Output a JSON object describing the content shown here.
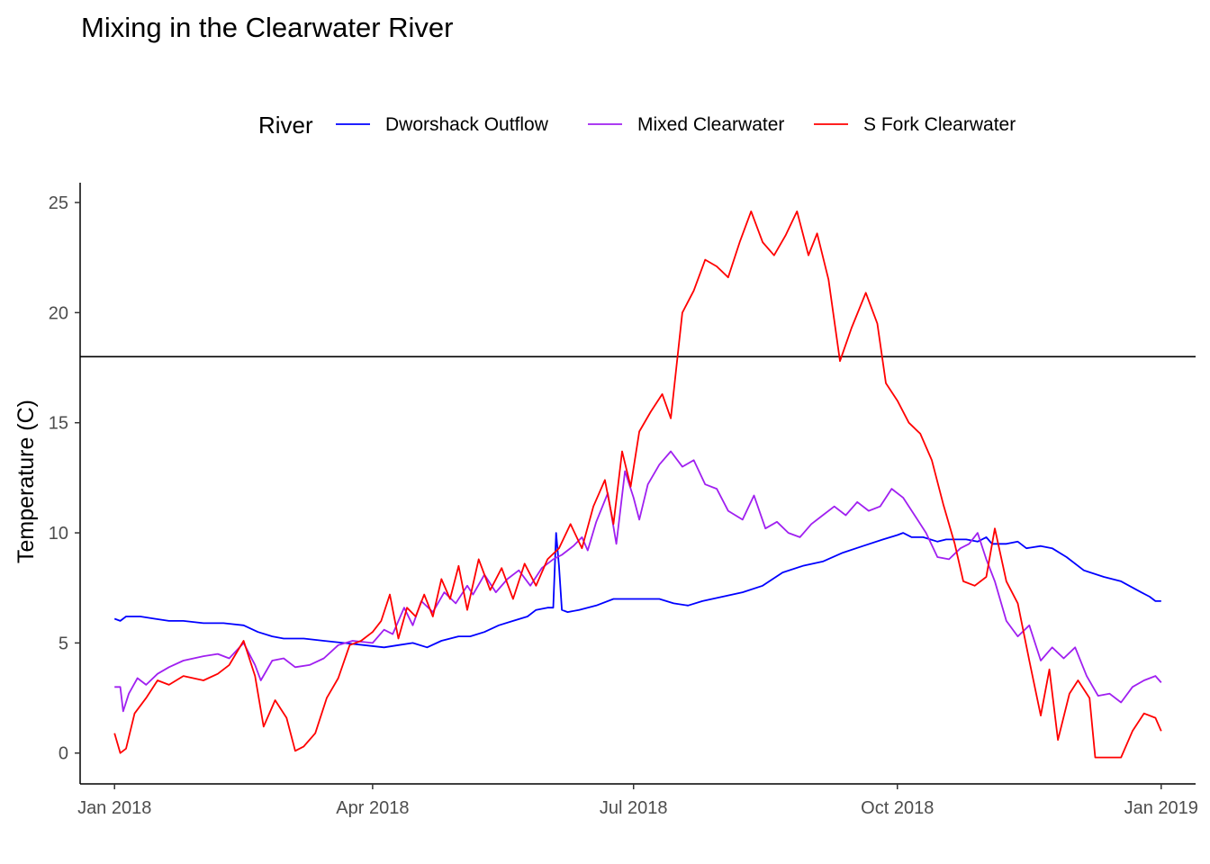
{
  "chart_data": {
    "type": "line",
    "title": "Mixing in the Clearwater River",
    "xlabel": "",
    "ylabel": "Temperature (C)",
    "legend": {
      "title": "River",
      "position": "top"
    },
    "x_ticks": [
      "2018-01-01",
      "2018-04-01",
      "2018-07-01",
      "2018-10-01",
      "2019-01-01"
    ],
    "x_tick_labels": [
      "Jan 2018",
      "Apr 2018",
      "Jul 2018",
      "Oct 2018",
      "Jan 2019"
    ],
    "xlim": [
      "2017-12-20",
      "2019-01-13"
    ],
    "y_ticks": [
      0,
      5,
      10,
      15,
      20,
      25
    ],
    "ylim": [
      -1.4,
      25.9
    ],
    "grid": false,
    "reference_line": {
      "y": 18
    },
    "series": [
      {
        "name": "Dworshack Outflow",
        "color": "#0000ff",
        "points": [
          [
            "2018-01-01",
            6.1
          ],
          [
            "2018-01-03",
            6.0
          ],
          [
            "2018-01-05",
            6.2
          ],
          [
            "2018-01-10",
            6.2
          ],
          [
            "2018-01-15",
            6.1
          ],
          [
            "2018-01-20",
            6.0
          ],
          [
            "2018-01-25",
            6.0
          ],
          [
            "2018-02-01",
            5.9
          ],
          [
            "2018-02-08",
            5.9
          ],
          [
            "2018-02-15",
            5.8
          ],
          [
            "2018-02-20",
            5.5
          ],
          [
            "2018-02-25",
            5.3
          ],
          [
            "2018-03-01",
            5.2
          ],
          [
            "2018-03-08",
            5.2
          ],
          [
            "2018-03-15",
            5.1
          ],
          [
            "2018-03-22",
            5.0
          ],
          [
            "2018-03-29",
            4.9
          ],
          [
            "2018-04-05",
            4.8
          ],
          [
            "2018-04-10",
            4.9
          ],
          [
            "2018-04-15",
            5.0
          ],
          [
            "2018-04-20",
            4.8
          ],
          [
            "2018-04-25",
            5.1
          ],
          [
            "2018-05-01",
            5.3
          ],
          [
            "2018-05-05",
            5.3
          ],
          [
            "2018-05-10",
            5.5
          ],
          [
            "2018-05-15",
            5.8
          ],
          [
            "2018-05-20",
            6.0
          ],
          [
            "2018-05-25",
            6.2
          ],
          [
            "2018-05-28",
            6.5
          ],
          [
            "2018-06-01",
            6.6
          ],
          [
            "2018-06-03",
            6.6
          ],
          [
            "2018-06-04",
            10.0
          ],
          [
            "2018-06-05",
            8.5
          ],
          [
            "2018-06-06",
            6.5
          ],
          [
            "2018-06-08",
            6.4
          ],
          [
            "2018-06-12",
            6.5
          ],
          [
            "2018-06-18",
            6.7
          ],
          [
            "2018-06-24",
            7.0
          ],
          [
            "2018-07-01",
            7.0
          ],
          [
            "2018-07-05",
            7.0
          ],
          [
            "2018-07-10",
            7.0
          ],
          [
            "2018-07-15",
            6.8
          ],
          [
            "2018-07-20",
            6.7
          ],
          [
            "2018-07-25",
            6.9
          ],
          [
            "2018-08-01",
            7.1
          ],
          [
            "2018-08-08",
            7.3
          ],
          [
            "2018-08-15",
            7.6
          ],
          [
            "2018-08-22",
            8.2
          ],
          [
            "2018-08-29",
            8.5
          ],
          [
            "2018-09-05",
            8.7
          ],
          [
            "2018-09-12",
            9.1
          ],
          [
            "2018-09-19",
            9.4
          ],
          [
            "2018-09-26",
            9.7
          ],
          [
            "2018-10-01",
            9.9
          ],
          [
            "2018-10-03",
            10.0
          ],
          [
            "2018-10-06",
            9.8
          ],
          [
            "2018-10-10",
            9.8
          ],
          [
            "2018-10-15",
            9.6
          ],
          [
            "2018-10-18",
            9.7
          ],
          [
            "2018-10-25",
            9.7
          ],
          [
            "2018-10-29",
            9.6
          ],
          [
            "2018-11-01",
            9.8
          ],
          [
            "2018-11-03",
            9.5
          ],
          [
            "2018-11-08",
            9.5
          ],
          [
            "2018-11-12",
            9.6
          ],
          [
            "2018-11-15",
            9.3
          ],
          [
            "2018-11-20",
            9.4
          ],
          [
            "2018-11-24",
            9.3
          ],
          [
            "2018-11-29",
            8.9
          ],
          [
            "2018-12-05",
            8.3
          ],
          [
            "2018-12-12",
            8.0
          ],
          [
            "2018-12-18",
            7.8
          ],
          [
            "2018-12-25",
            7.3
          ],
          [
            "2018-12-28",
            7.1
          ],
          [
            "2018-12-30",
            6.9
          ],
          [
            "2019-01-01",
            6.9
          ]
        ]
      },
      {
        "name": "Mixed Clearwater",
        "color": "#a020f0",
        "points": [
          [
            "2018-01-01",
            3.0
          ],
          [
            "2018-01-03",
            3.0
          ],
          [
            "2018-01-04",
            1.9
          ],
          [
            "2018-01-06",
            2.7
          ],
          [
            "2018-01-09",
            3.4
          ],
          [
            "2018-01-12",
            3.1
          ],
          [
            "2018-01-16",
            3.6
          ],
          [
            "2018-01-20",
            3.9
          ],
          [
            "2018-01-25",
            4.2
          ],
          [
            "2018-02-01",
            4.4
          ],
          [
            "2018-02-06",
            4.5
          ],
          [
            "2018-02-10",
            4.3
          ],
          [
            "2018-02-15",
            5.0
          ],
          [
            "2018-02-19",
            4.0
          ],
          [
            "2018-02-21",
            3.3
          ],
          [
            "2018-02-25",
            4.2
          ],
          [
            "2018-03-01",
            4.3
          ],
          [
            "2018-03-05",
            3.9
          ],
          [
            "2018-03-10",
            4.0
          ],
          [
            "2018-03-15",
            4.3
          ],
          [
            "2018-03-20",
            4.9
          ],
          [
            "2018-03-25",
            5.1
          ],
          [
            "2018-04-01",
            5.0
          ],
          [
            "2018-04-05",
            5.6
          ],
          [
            "2018-04-08",
            5.4
          ],
          [
            "2018-04-12",
            6.6
          ],
          [
            "2018-04-15",
            5.8
          ],
          [
            "2018-04-18",
            6.9
          ],
          [
            "2018-04-22",
            6.4
          ],
          [
            "2018-04-26",
            7.3
          ],
          [
            "2018-04-30",
            6.8
          ],
          [
            "2018-05-04",
            7.6
          ],
          [
            "2018-05-06",
            7.2
          ],
          [
            "2018-05-10",
            8.1
          ],
          [
            "2018-05-14",
            7.3
          ],
          [
            "2018-05-18",
            7.9
          ],
          [
            "2018-05-22",
            8.3
          ],
          [
            "2018-05-26",
            7.6
          ],
          [
            "2018-05-30",
            8.4
          ],
          [
            "2018-06-03",
            8.8
          ],
          [
            "2018-06-06",
            9.0
          ],
          [
            "2018-06-10",
            9.4
          ],
          [
            "2018-06-13",
            9.8
          ],
          [
            "2018-06-15",
            9.2
          ],
          [
            "2018-06-18",
            10.5
          ],
          [
            "2018-06-22",
            11.8
          ],
          [
            "2018-06-25",
            9.5
          ],
          [
            "2018-06-28",
            12.8
          ],
          [
            "2018-07-01",
            11.6
          ],
          [
            "2018-07-03",
            10.6
          ],
          [
            "2018-07-06",
            12.2
          ],
          [
            "2018-07-10",
            13.1
          ],
          [
            "2018-07-14",
            13.7
          ],
          [
            "2018-07-18",
            13.0
          ],
          [
            "2018-07-22",
            13.3
          ],
          [
            "2018-07-26",
            12.2
          ],
          [
            "2018-07-30",
            12.0
          ],
          [
            "2018-08-03",
            11.0
          ],
          [
            "2018-08-08",
            10.6
          ],
          [
            "2018-08-12",
            11.7
          ],
          [
            "2018-08-16",
            10.2
          ],
          [
            "2018-08-20",
            10.5
          ],
          [
            "2018-08-24",
            10.0
          ],
          [
            "2018-08-28",
            9.8
          ],
          [
            "2018-09-01",
            10.4
          ],
          [
            "2018-09-05",
            10.8
          ],
          [
            "2018-09-09",
            11.2
          ],
          [
            "2018-09-13",
            10.8
          ],
          [
            "2018-09-17",
            11.4
          ],
          [
            "2018-09-21",
            11.0
          ],
          [
            "2018-09-25",
            11.2
          ],
          [
            "2018-09-29",
            12.0
          ],
          [
            "2018-10-03",
            11.6
          ],
          [
            "2018-10-07",
            10.8
          ],
          [
            "2018-10-11",
            10.0
          ],
          [
            "2018-10-15",
            8.9
          ],
          [
            "2018-10-19",
            8.8
          ],
          [
            "2018-10-23",
            9.3
          ],
          [
            "2018-10-26",
            9.5
          ],
          [
            "2018-10-29",
            10.0
          ],
          [
            "2018-11-01",
            8.8
          ],
          [
            "2018-11-04",
            7.8
          ],
          [
            "2018-11-08",
            6.0
          ],
          [
            "2018-11-12",
            5.3
          ],
          [
            "2018-11-16",
            5.8
          ],
          [
            "2018-11-20",
            4.2
          ],
          [
            "2018-11-24",
            4.8
          ],
          [
            "2018-11-28",
            4.3
          ],
          [
            "2018-12-02",
            4.8
          ],
          [
            "2018-12-06",
            3.5
          ],
          [
            "2018-12-10",
            2.6
          ],
          [
            "2018-12-14",
            2.7
          ],
          [
            "2018-12-18",
            2.3
          ],
          [
            "2018-12-22",
            3.0
          ],
          [
            "2018-12-26",
            3.3
          ],
          [
            "2018-12-30",
            3.5
          ],
          [
            "2019-01-01",
            3.2
          ]
        ]
      },
      {
        "name": "S Fork Clearwater",
        "color": "#ff0000",
        "points": [
          [
            "2018-01-01",
            0.9
          ],
          [
            "2018-01-03",
            0.0
          ],
          [
            "2018-01-05",
            0.2
          ],
          [
            "2018-01-08",
            1.8
          ],
          [
            "2018-01-12",
            2.5
          ],
          [
            "2018-01-16",
            3.3
          ],
          [
            "2018-01-20",
            3.1
          ],
          [
            "2018-01-25",
            3.5
          ],
          [
            "2018-02-01",
            3.3
          ],
          [
            "2018-02-06",
            3.6
          ],
          [
            "2018-02-10",
            4.0
          ],
          [
            "2018-02-15",
            5.1
          ],
          [
            "2018-02-19",
            3.5
          ],
          [
            "2018-02-22",
            1.2
          ],
          [
            "2018-02-26",
            2.4
          ],
          [
            "2018-03-02",
            1.6
          ],
          [
            "2018-03-05",
            0.1
          ],
          [
            "2018-03-08",
            0.3
          ],
          [
            "2018-03-12",
            0.9
          ],
          [
            "2018-03-16",
            2.5
          ],
          [
            "2018-03-20",
            3.4
          ],
          [
            "2018-03-24",
            4.9
          ],
          [
            "2018-03-28",
            5.1
          ],
          [
            "2018-04-01",
            5.5
          ],
          [
            "2018-04-04",
            6.0
          ],
          [
            "2018-04-07",
            7.2
          ],
          [
            "2018-04-10",
            5.2
          ],
          [
            "2018-04-13",
            6.6
          ],
          [
            "2018-04-16",
            6.2
          ],
          [
            "2018-04-19",
            7.2
          ],
          [
            "2018-04-22",
            6.2
          ],
          [
            "2018-04-25",
            7.9
          ],
          [
            "2018-04-28",
            7.0
          ],
          [
            "2018-05-01",
            8.5
          ],
          [
            "2018-05-04",
            6.5
          ],
          [
            "2018-05-08",
            8.8
          ],
          [
            "2018-05-12",
            7.4
          ],
          [
            "2018-05-16",
            8.4
          ],
          [
            "2018-05-20",
            7.0
          ],
          [
            "2018-05-24",
            8.6
          ],
          [
            "2018-05-28",
            7.6
          ],
          [
            "2018-06-01",
            8.8
          ],
          [
            "2018-06-05",
            9.3
          ],
          [
            "2018-06-09",
            10.4
          ],
          [
            "2018-06-13",
            9.3
          ],
          [
            "2018-06-17",
            11.2
          ],
          [
            "2018-06-21",
            12.4
          ],
          [
            "2018-06-24",
            10.4
          ],
          [
            "2018-06-27",
            13.7
          ],
          [
            "2018-06-30",
            12.1
          ],
          [
            "2018-07-03",
            14.6
          ],
          [
            "2018-07-07",
            15.5
          ],
          [
            "2018-07-11",
            16.3
          ],
          [
            "2018-07-14",
            15.2
          ],
          [
            "2018-07-18",
            20.0
          ],
          [
            "2018-07-22",
            21.0
          ],
          [
            "2018-07-26",
            22.4
          ],
          [
            "2018-07-30",
            22.1
          ],
          [
            "2018-08-03",
            21.6
          ],
          [
            "2018-08-07",
            23.2
          ],
          [
            "2018-08-11",
            24.6
          ],
          [
            "2018-08-15",
            23.2
          ],
          [
            "2018-08-19",
            22.6
          ],
          [
            "2018-08-23",
            23.5
          ],
          [
            "2018-08-27",
            24.6
          ],
          [
            "2018-08-31",
            22.6
          ],
          [
            "2018-09-03",
            23.6
          ],
          [
            "2018-09-07",
            21.5
          ],
          [
            "2018-09-11",
            17.8
          ],
          [
            "2018-09-15",
            19.3
          ],
          [
            "2018-09-20",
            20.9
          ],
          [
            "2018-09-24",
            19.5
          ],
          [
            "2018-09-27",
            16.8
          ],
          [
            "2018-10-01",
            16.0
          ],
          [
            "2018-10-05",
            15.0
          ],
          [
            "2018-10-09",
            14.5
          ],
          [
            "2018-10-13",
            13.3
          ],
          [
            "2018-10-17",
            11.3
          ],
          [
            "2018-10-21",
            9.5
          ],
          [
            "2018-10-24",
            7.8
          ],
          [
            "2018-10-28",
            7.6
          ],
          [
            "2018-11-01",
            8.0
          ],
          [
            "2018-11-04",
            10.2
          ],
          [
            "2018-11-08",
            7.8
          ],
          [
            "2018-11-12",
            6.8
          ],
          [
            "2018-11-16",
            4.2
          ],
          [
            "2018-11-20",
            1.7
          ],
          [
            "2018-11-23",
            3.8
          ],
          [
            "2018-11-26",
            0.6
          ],
          [
            "2018-11-30",
            2.7
          ],
          [
            "2018-12-03",
            3.3
          ],
          [
            "2018-12-07",
            2.5
          ],
          [
            "2018-12-09",
            -0.2
          ],
          [
            "2018-12-13",
            -0.2
          ],
          [
            "2018-12-18",
            -0.2
          ],
          [
            "2018-12-22",
            1.0
          ],
          [
            "2018-12-26",
            1.8
          ],
          [
            "2018-12-30",
            1.6
          ],
          [
            "2019-01-01",
            1.0
          ]
        ]
      }
    ]
  }
}
